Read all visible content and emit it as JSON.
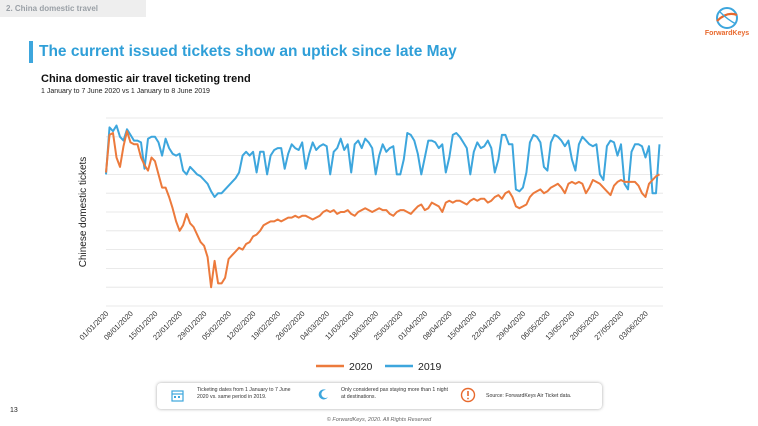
{
  "header": {
    "section_label": "2. China domestic travel",
    "logo_text": "ForwardKeys",
    "title": "The current issued tickets show an uptick since late May"
  },
  "colors": {
    "accent": "#2f9fd8",
    "series_2020": "#ec7a3c",
    "series_2019": "#3da6dd",
    "grid": "#e3e3e3"
  },
  "chart_data": {
    "type": "line",
    "title": "China domestic air travel ticketing trend",
    "subtitle": "1 January to 7 June 2020 vs 1 January to 8 June 2019",
    "xlabel": "",
    "ylabel": "Chinese domestic tickets",
    "grid": true,
    "legend": "bottom",
    "x_tick_labels": [
      "01/01/2020",
      "08/01/2020",
      "15/01/2020",
      "22/01/2020",
      "29/01/2020",
      "05/02/2020",
      "12/02/2020",
      "19/02/2020",
      "26/02/2020",
      "04/03/2020",
      "11/03/2020",
      "18/03/2020",
      "25/03/2020",
      "01/04/2020",
      "08/04/2020",
      "15/04/2020",
      "22/04/2020",
      "29/04/2020",
      "06/05/2020",
      "13/05/2020",
      "20/05/2020",
      "27/05/2020",
      "03/06/2020"
    ],
    "x_range_days": [
      0,
      159
    ],
    "y_note": "y-axis unlabeled; values are relative index 0-100",
    "ylim": [
      0,
      100
    ],
    "series": [
      {
        "name": "2020",
        "points": [
          [
            0,
            71
          ],
          [
            1,
            91
          ],
          [
            2,
            92
          ],
          [
            3,
            79
          ],
          [
            4,
            74
          ],
          [
            5,
            85
          ],
          [
            6,
            93
          ],
          [
            7,
            87
          ],
          [
            8,
            86
          ],
          [
            9,
            86
          ],
          [
            10,
            79
          ],
          [
            11,
            75
          ],
          [
            12,
            72
          ],
          [
            13,
            79
          ],
          [
            14,
            77
          ],
          [
            15,
            70
          ],
          [
            16,
            63
          ],
          [
            17,
            63
          ],
          [
            18,
            58
          ],
          [
            19,
            52
          ],
          [
            20,
            45
          ],
          [
            21,
            40
          ],
          [
            22,
            43
          ],
          [
            23,
            49
          ],
          [
            24,
            44
          ],
          [
            25,
            42
          ],
          [
            26,
            38
          ],
          [
            27,
            34
          ],
          [
            28,
            32
          ],
          [
            29,
            26
          ],
          [
            30,
            10
          ],
          [
            31,
            24
          ],
          [
            32,
            12
          ],
          [
            33,
            12
          ],
          [
            34,
            15
          ],
          [
            35,
            25
          ],
          [
            36,
            27
          ],
          [
            37,
            29
          ],
          [
            38,
            31
          ],
          [
            39,
            30
          ],
          [
            40,
            33
          ],
          [
            41,
            34
          ],
          [
            42,
            37
          ],
          [
            43,
            38
          ],
          [
            44,
            40
          ],
          [
            45,
            43
          ],
          [
            46,
            44
          ],
          [
            47,
            45
          ],
          [
            48,
            45
          ],
          [
            49,
            46
          ],
          [
            50,
            45
          ],
          [
            51,
            46
          ],
          [
            52,
            47
          ],
          [
            53,
            47
          ],
          [
            54,
            48
          ],
          [
            55,
            47
          ],
          [
            56,
            48
          ],
          [
            57,
            48
          ],
          [
            58,
            47
          ],
          [
            59,
            46
          ],
          [
            60,
            47
          ],
          [
            61,
            48
          ],
          [
            62,
            50
          ],
          [
            63,
            51
          ],
          [
            64,
            50
          ],
          [
            65,
            51
          ],
          [
            66,
            49
          ],
          [
            67,
            50
          ],
          [
            68,
            50
          ],
          [
            69,
            51
          ],
          [
            70,
            49
          ],
          [
            71,
            48
          ],
          [
            72,
            50
          ],
          [
            73,
            51
          ],
          [
            74,
            52
          ],
          [
            75,
            51
          ],
          [
            76,
            50
          ],
          [
            77,
            51
          ],
          [
            78,
            52
          ],
          [
            79,
            51
          ],
          [
            80,
            51
          ],
          [
            81,
            49
          ],
          [
            82,
            48
          ],
          [
            83,
            50
          ],
          [
            84,
            51
          ],
          [
            85,
            51
          ],
          [
            86,
            50
          ],
          [
            87,
            49
          ],
          [
            88,
            51
          ],
          [
            89,
            53
          ],
          [
            90,
            54
          ],
          [
            91,
            51
          ],
          [
            92,
            52
          ],
          [
            93,
            55
          ],
          [
            94,
            54
          ],
          [
            95,
            53
          ],
          [
            96,
            50
          ],
          [
            97,
            55
          ],
          [
            98,
            56
          ],
          [
            99,
            55
          ],
          [
            100,
            56
          ],
          [
            101,
            56
          ],
          [
            102,
            55
          ],
          [
            103,
            54
          ],
          [
            104,
            56
          ],
          [
            105,
            57
          ],
          [
            106,
            56
          ],
          [
            107,
            57
          ],
          [
            108,
            57
          ],
          [
            109,
            55
          ],
          [
            110,
            56
          ],
          [
            111,
            58
          ],
          [
            112,
            59
          ],
          [
            113,
            57
          ],
          [
            114,
            60
          ],
          [
            115,
            61
          ],
          [
            116,
            58
          ],
          [
            117,
            53
          ],
          [
            118,
            52
          ],
          [
            119,
            53
          ],
          [
            120,
            54
          ],
          [
            121,
            58
          ],
          [
            122,
            60
          ],
          [
            123,
            61
          ],
          [
            124,
            62
          ],
          [
            125,
            60
          ],
          [
            126,
            61
          ],
          [
            127,
            63
          ],
          [
            128,
            64
          ],
          [
            129,
            65
          ],
          [
            130,
            63
          ],
          [
            131,
            60
          ],
          [
            132,
            65
          ],
          [
            133,
            66
          ],
          [
            134,
            65
          ],
          [
            135,
            66
          ],
          [
            136,
            65
          ],
          [
            137,
            60
          ],
          [
            138,
            63
          ],
          [
            139,
            67
          ],
          [
            140,
            66
          ],
          [
            141,
            65
          ],
          [
            142,
            63
          ],
          [
            143,
            61
          ],
          [
            144,
            59
          ],
          [
            145,
            64
          ],
          [
            146,
            66
          ],
          [
            147,
            67
          ],
          [
            148,
            66
          ],
          [
            149,
            66
          ],
          [
            150,
            66
          ],
          [
            151,
            66
          ],
          [
            152,
            64
          ],
          [
            153,
            60
          ],
          [
            154,
            58
          ],
          [
            155,
            65
          ],
          [
            156,
            67
          ],
          [
            157,
            69
          ],
          [
            158,
            70
          ]
        ]
      },
      {
        "name": "2019",
        "points": [
          [
            0,
            70
          ],
          [
            1,
            95
          ],
          [
            2,
            93
          ],
          [
            3,
            96
          ],
          [
            4,
            90
          ],
          [
            5,
            88
          ],
          [
            6,
            94
          ],
          [
            7,
            91
          ],
          [
            8,
            88
          ],
          [
            9,
            88
          ],
          [
            10,
            87
          ],
          [
            11,
            73
          ],
          [
            12,
            89
          ],
          [
            13,
            90
          ],
          [
            14,
            90
          ],
          [
            15,
            87
          ],
          [
            16,
            80
          ],
          [
            17,
            89
          ],
          [
            18,
            84
          ],
          [
            19,
            81
          ],
          [
            20,
            80
          ],
          [
            21,
            81
          ],
          [
            22,
            72
          ],
          [
            23,
            70
          ],
          [
            24,
            74
          ],
          [
            25,
            72
          ],
          [
            26,
            70
          ],
          [
            27,
            69
          ],
          [
            28,
            67
          ],
          [
            29,
            65
          ],
          [
            30,
            61
          ],
          [
            31,
            58
          ],
          [
            32,
            60
          ],
          [
            33,
            60
          ],
          [
            34,
            62
          ],
          [
            35,
            64
          ],
          [
            36,
            66
          ],
          [
            37,
            68
          ],
          [
            38,
            71
          ],
          [
            39,
            80
          ],
          [
            40,
            82
          ],
          [
            41,
            80
          ],
          [
            42,
            82
          ],
          [
            43,
            71
          ],
          [
            44,
            82
          ],
          [
            45,
            82
          ],
          [
            46,
            70
          ],
          [
            47,
            80
          ],
          [
            48,
            83
          ],
          [
            49,
            84
          ],
          [
            50,
            84
          ],
          [
            51,
            73
          ],
          [
            52,
            81
          ],
          [
            53,
            86
          ],
          [
            54,
            84
          ],
          [
            55,
            83
          ],
          [
            56,
            87
          ],
          [
            57,
            73
          ],
          [
            58,
            81
          ],
          [
            59,
            87
          ],
          [
            60,
            83
          ],
          [
            61,
            85
          ],
          [
            62,
            86
          ],
          [
            63,
            85
          ],
          [
            64,
            70
          ],
          [
            65,
            82
          ],
          [
            66,
            84
          ],
          [
            67,
            89
          ],
          [
            68,
            83
          ],
          [
            69,
            86
          ],
          [
            70,
            71
          ],
          [
            71,
            86
          ],
          [
            72,
            88
          ],
          [
            73,
            84
          ],
          [
            74,
            89
          ],
          [
            75,
            87
          ],
          [
            76,
            84
          ],
          [
            77,
            70
          ],
          [
            78,
            80
          ],
          [
            79,
            86
          ],
          [
            80,
            82
          ],
          [
            81,
            84
          ],
          [
            82,
            85
          ],
          [
            83,
            70
          ],
          [
            84,
            70
          ],
          [
            85,
            78
          ],
          [
            86,
            92
          ],
          [
            87,
            91
          ],
          [
            88,
            88
          ],
          [
            89,
            81
          ],
          [
            90,
            70
          ],
          [
            91,
            79
          ],
          [
            92,
            88
          ],
          [
            93,
            88
          ],
          [
            94,
            87
          ],
          [
            95,
            84
          ],
          [
            96,
            86
          ],
          [
            97,
            71
          ],
          [
            98,
            79
          ],
          [
            99,
            91
          ],
          [
            100,
            92
          ],
          [
            101,
            90
          ],
          [
            102,
            87
          ],
          [
            103,
            84
          ],
          [
            104,
            70
          ],
          [
            105,
            82
          ],
          [
            106,
            87
          ],
          [
            107,
            84
          ],
          [
            108,
            85
          ],
          [
            109,
            88
          ],
          [
            110,
            84
          ],
          [
            111,
            71
          ],
          [
            112,
            78
          ],
          [
            113,
            91
          ],
          [
            114,
            91
          ],
          [
            115,
            86
          ],
          [
            116,
            86
          ],
          [
            117,
            62
          ],
          [
            118,
            61
          ],
          [
            119,
            63
          ],
          [
            120,
            71
          ],
          [
            121,
            87
          ],
          [
            122,
            91
          ],
          [
            123,
            90
          ],
          [
            124,
            87
          ],
          [
            125,
            74
          ],
          [
            126,
            72
          ],
          [
            127,
            87
          ],
          [
            128,
            91
          ],
          [
            129,
            90
          ],
          [
            130,
            88
          ],
          [
            131,
            85
          ],
          [
            132,
            88
          ],
          [
            133,
            78
          ],
          [
            134,
            72
          ],
          [
            135,
            86
          ],
          [
            136,
            90
          ],
          [
            137,
            88
          ],
          [
            138,
            86
          ],
          [
            139,
            85
          ],
          [
            140,
            86
          ],
          [
            141,
            70
          ],
          [
            142,
            67
          ],
          [
            143,
            85
          ],
          [
            144,
            88
          ],
          [
            145,
            87
          ],
          [
            146,
            80
          ],
          [
            147,
            86
          ],
          [
            148,
            65
          ],
          [
            149,
            62
          ],
          [
            150,
            82
          ],
          [
            151,
            86
          ],
          [
            152,
            86
          ],
          [
            153,
            85
          ],
          [
            154,
            79
          ],
          [
            155,
            85
          ],
          [
            156,
            60
          ],
          [
            157,
            60
          ],
          [
            158,
            86
          ]
        ]
      }
    ]
  },
  "footer": {
    "note_dates": "Ticketing dates from 1 January to 7 June 2020 vs. same period in 2019.",
    "note_stay": "Only considered pax staying more than 1 night at destinations.",
    "note_source": "Source: ForwardKeys Air Ticket data.",
    "page_number": "13",
    "copyright": "© ForwardKeys, 2020. All Rights Reserved"
  }
}
